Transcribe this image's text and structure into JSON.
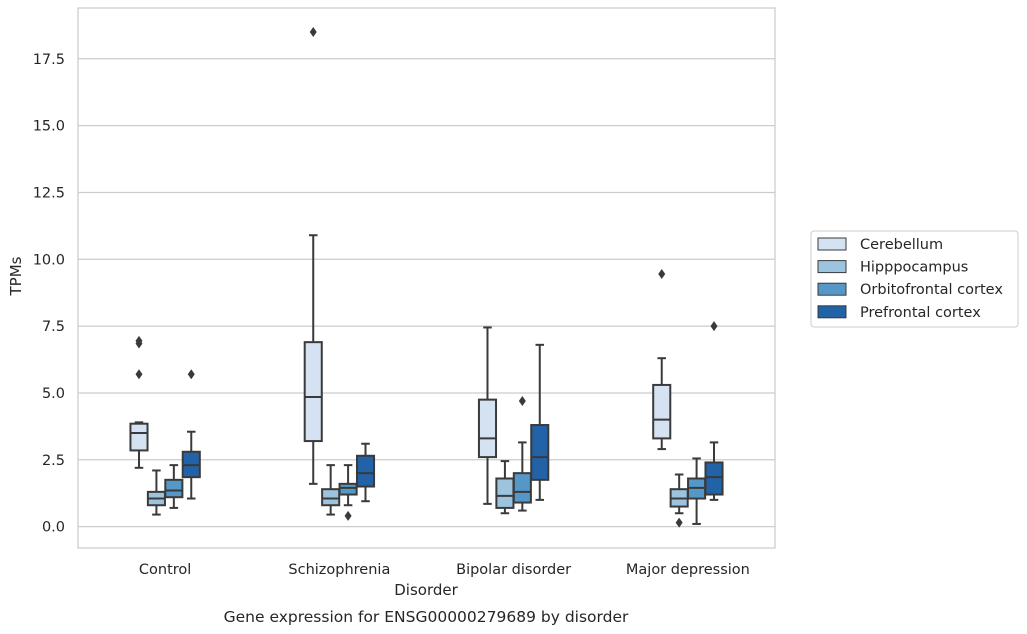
{
  "chart_data": {
    "type": "box",
    "title": "Gene expression for ENSG00000279689 by disorder",
    "xlabel": "Disorder",
    "ylabel": "TPMs",
    "ylim": [
      -0.8,
      19.4
    ],
    "yticks": [
      "0.0",
      "2.5",
      "5.0",
      "7.5",
      "10.0",
      "12.5",
      "15.0",
      "17.5"
    ],
    "categories": [
      "Control",
      "Schizophrenia",
      "Bipolar disorder",
      "Major depression"
    ],
    "grid": "horizontal",
    "legend_position": "right",
    "series": [
      {
        "name": "Cerebellum",
        "color": "#d4e2f1",
        "boxes": [
          {
            "min": 2.2,
            "q1": 2.85,
            "median": 3.5,
            "q3": 3.85,
            "max": 3.9,
            "outliers": [
              5.7,
              6.85,
              6.95
            ]
          },
          {
            "min": 1.6,
            "q1": 3.2,
            "median": 4.85,
            "q3": 6.9,
            "max": 10.9,
            "outliers": [
              18.5
            ]
          },
          {
            "min": 0.85,
            "q1": 2.6,
            "median": 3.3,
            "q3": 4.75,
            "max": 7.45,
            "outliers": []
          },
          {
            "min": 2.9,
            "q1": 3.3,
            "median": 4.0,
            "q3": 5.3,
            "max": 6.3,
            "outliers": [
              9.45
            ]
          }
        ]
      },
      {
        "name": "Hipppocampus",
        "color": "#9dc4de",
        "boxes": [
          {
            "min": 0.45,
            "q1": 0.8,
            "median": 1.05,
            "q3": 1.3,
            "max": 2.1,
            "outliers": []
          },
          {
            "min": 0.45,
            "q1": 0.8,
            "median": 1.05,
            "q3": 1.4,
            "max": 2.3,
            "outliers": []
          },
          {
            "min": 0.5,
            "q1": 0.7,
            "median": 1.15,
            "q3": 1.8,
            "max": 2.45,
            "outliers": []
          },
          {
            "min": 0.5,
            "q1": 0.75,
            "median": 1.05,
            "q3": 1.4,
            "max": 1.95,
            "outliers": [
              0.15
            ]
          }
        ]
      },
      {
        "name": "Orbitofrontal cortex",
        "color": "#5598c8",
        "boxes": [
          {
            "min": 0.7,
            "q1": 1.1,
            "median": 1.35,
            "q3": 1.75,
            "max": 2.3,
            "outliers": []
          },
          {
            "min": 0.8,
            "q1": 1.2,
            "median": 1.45,
            "q3": 1.6,
            "max": 2.3,
            "outliers": [
              0.4
            ]
          },
          {
            "min": 0.6,
            "q1": 0.9,
            "median": 1.3,
            "q3": 2.0,
            "max": 3.15,
            "outliers": [
              4.7
            ]
          },
          {
            "min": 0.1,
            "q1": 1.05,
            "median": 1.45,
            "q3": 1.8,
            "max": 2.55,
            "outliers": []
          }
        ]
      },
      {
        "name": "Prefrontal cortex",
        "color": "#2262a6",
        "boxes": [
          {
            "min": 1.05,
            "q1": 1.85,
            "median": 2.3,
            "q3": 2.8,
            "max": 3.55,
            "outliers": [
              5.7
            ]
          },
          {
            "min": 0.95,
            "q1": 1.5,
            "median": 2.0,
            "q3": 2.65,
            "max": 3.1,
            "outliers": []
          },
          {
            "min": 1.0,
            "q1": 1.75,
            "median": 2.6,
            "q3": 3.8,
            "max": 6.8,
            "outliers": []
          },
          {
            "min": 1.0,
            "q1": 1.2,
            "median": 1.85,
            "q3": 2.4,
            "max": 3.15,
            "outliers": [
              7.5
            ]
          }
        ]
      }
    ]
  }
}
